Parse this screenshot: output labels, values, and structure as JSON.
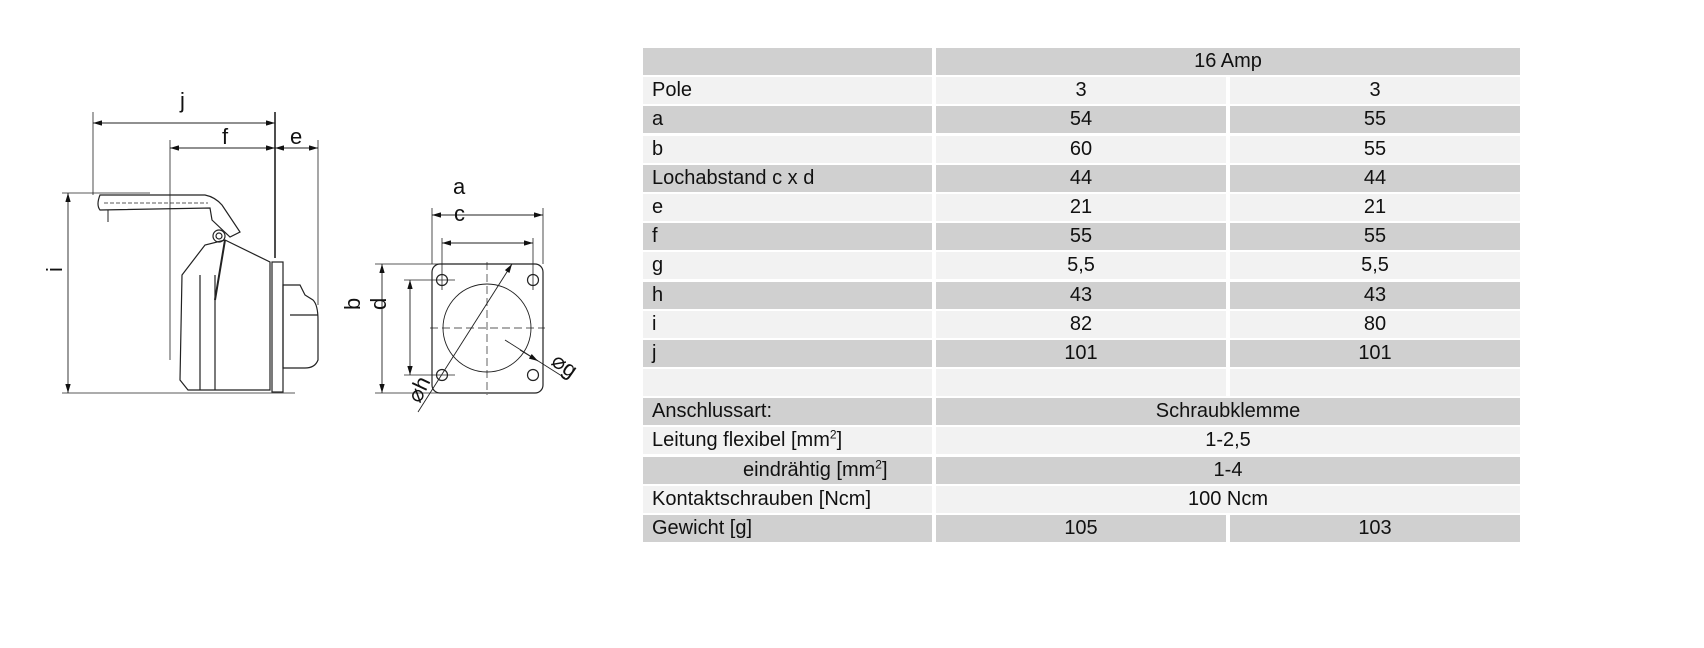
{
  "drawing": {
    "dimension_labels": {
      "j": "j",
      "f": "f",
      "e": "e",
      "i": "i",
      "a": "a",
      "c": "c",
      "b": "b",
      "d": "d",
      "h": "⌀h",
      "g": "⌀g"
    }
  },
  "table": {
    "header": {
      "label": "",
      "value": "16 Amp"
    },
    "dimension_rows": [
      {
        "label": "Pole",
        "v1": "3",
        "v2": "3"
      },
      {
        "label": "a",
        "v1": "54",
        "v2": "55"
      },
      {
        "label": "b",
        "v1": "60",
        "v2": "55"
      },
      {
        "label": "Lochabstand  c x d",
        "v1": "44",
        "v2": "44"
      },
      {
        "label": "e",
        "v1": "21",
        "v2": "21"
      },
      {
        "label": "f",
        "v1": "55",
        "v2": "55"
      },
      {
        "label": "g",
        "v1": "5,5",
        "v2": "5,5"
      },
      {
        "label": "h",
        "v1": "43",
        "v2": "43"
      },
      {
        "label": "i",
        "v1": "82",
        "v2": "80"
      },
      {
        "label": "j",
        "v1": "101",
        "v2": "101"
      }
    ],
    "anschlussart": {
      "label": "Anschlussart:",
      "value": "Schraubklemme"
    },
    "leitung_flexibel": {
      "label": "Leitung flexibel [mm",
      "sup": "2",
      "close": "]",
      "value": "1-2,5"
    },
    "eindraehtig": {
      "label": "eindrähtig [mm",
      "sup": "2",
      "close": "]",
      "value": "1-4"
    },
    "kontaktschrauben": {
      "label": "Kontaktschrauben [Ncm]",
      "value": "100 Ncm"
    },
    "gewicht": {
      "label": "Gewicht [g]",
      "v1": "105",
      "v2": "103"
    }
  },
  "colors": {
    "row_dark": "#d0d0d0",
    "row_light": "#f2f2f2"
  }
}
